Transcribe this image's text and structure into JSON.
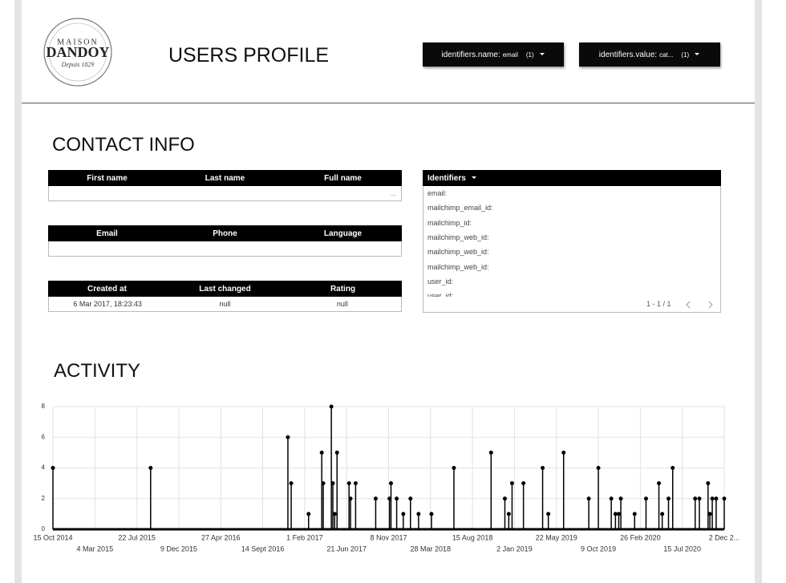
{
  "header": {
    "logo": [
      "MAISON",
      "DANDOY",
      "Depuis 1829"
    ],
    "title": "USERS PROFILE",
    "filters": [
      {
        "label": "identifiers.name:",
        "value": "email",
        "count": "(1)"
      },
      {
        "label": "identifiers.value:",
        "value": "cat...",
        "count": "(1)"
      }
    ]
  },
  "contact_info": {
    "title": "CONTACT INFO",
    "tables": [
      {
        "columns": [
          "First name",
          "Last name",
          "Full name"
        ],
        "cells": [
          null,
          null,
          "..."
        ]
      },
      {
        "columns": [
          "Email",
          "Phone",
          "Language"
        ],
        "cells": [
          null,
          null,
          null
        ]
      },
      {
        "columns": [
          "Created at",
          "Last changed",
          "Rating"
        ],
        "cells": [
          "6 Mar 2017, 18:23:43",
          "null",
          "null"
        ]
      }
    ],
    "identifiers": {
      "title": "Identifiers",
      "items": [
        "email:",
        "mailchimp_email_id:",
        "mailchimp_id:",
        "mailchimp_web_id:",
        "mailchimp_web_id:",
        "mailchimp_web_id:",
        "user_id:",
        "user_id:"
      ],
      "pagination": "1 - 1 / 1"
    }
  },
  "activity": {
    "title": "ACTIVITY",
    "chart_data": {
      "type": "stem",
      "color": "#000000",
      "grid": true,
      "ylim": [
        0,
        8
      ],
      "yticks": [
        0,
        2,
        4,
        6,
        8
      ],
      "xlim": [
        "2014-10-15",
        "2020-12-02"
      ],
      "xticks": [
        {
          "value": "2014-10-15",
          "label": "15 Oct 2014"
        },
        {
          "value": "2015-03-04",
          "label": "4 Mar 2015"
        },
        {
          "value": "2015-07-22",
          "label": "22 Jul 2015"
        },
        {
          "value": "2015-12-09",
          "label": "9 Dec 2015"
        },
        {
          "value": "2016-04-27",
          "label": "27 Apr 2016"
        },
        {
          "value": "2016-09-14",
          "label": "14 Sept 2016"
        },
        {
          "value": "2017-02-01",
          "label": "1 Feb 2017"
        },
        {
          "value": "2017-06-21",
          "label": "21 Jun 2017"
        },
        {
          "value": "2017-11-08",
          "label": "8 Nov 2017"
        },
        {
          "value": "2018-03-28",
          "label": "28 Mar 2018"
        },
        {
          "value": "2018-08-15",
          "label": "15 Aug 2018"
        },
        {
          "value": "2019-01-02",
          "label": "2 Jan 2019"
        },
        {
          "value": "2019-05-22",
          "label": "22 May 2019"
        },
        {
          "value": "2019-10-09",
          "label": "9 Oct 2019"
        },
        {
          "value": "2020-02-26",
          "label": "26 Feb 2020"
        },
        {
          "value": "2020-07-15",
          "label": "15 Jul 2020"
        },
        {
          "value": "2020-12-02",
          "label": "2 Dec 2..."
        }
      ],
      "series": [
        {
          "name": "Activity",
          "color": "#000000",
          "x": [
            "2014-10-15",
            "2015-09-06",
            "2016-12-07",
            "2016-12-18",
            "2017-02-14",
            "2017-03-30",
            "2017-04-04",
            "2017-05-01",
            "2017-05-06",
            "2017-05-12",
            "2017-05-20",
            "2017-06-29",
            "2017-07-04",
            "2017-07-21",
            "2017-09-26",
            "2017-11-11",
            "2017-11-16",
            "2017-12-05",
            "2017-12-27",
            "2018-01-20",
            "2018-02-16",
            "2018-03-31",
            "2018-06-14",
            "2018-10-16",
            "2018-12-01",
            "2018-12-14",
            "2018-12-25",
            "2019-02-01",
            "2019-04-06",
            "2019-04-25",
            "2019-06-15",
            "2019-09-07",
            "2019-10-09",
            "2019-11-21",
            "2019-12-05",
            "2019-12-16",
            "2019-12-23",
            "2020-02-07",
            "2020-03-16",
            "2020-04-28",
            "2020-05-09",
            "2020-05-30",
            "2020-06-13",
            "2020-08-27",
            "2020-09-10",
            "2020-10-09",
            "2020-10-15",
            "2020-10-23",
            "2020-11-05",
            "2020-12-02"
          ],
          "values": [
            4,
            4,
            6,
            3,
            1,
            5,
            3,
            8,
            3,
            1,
            5,
            3,
            2,
            3,
            2,
            2,
            3,
            2,
            1,
            2,
            1,
            1,
            4,
            5,
            2,
            1,
            3,
            3,
            4,
            1,
            5,
            2,
            4,
            2,
            1,
            1,
            2,
            1,
            2,
            3,
            1,
            2,
            4,
            2,
            2,
            3,
            1,
            2,
            2,
            2
          ]
        }
      ]
    }
  }
}
